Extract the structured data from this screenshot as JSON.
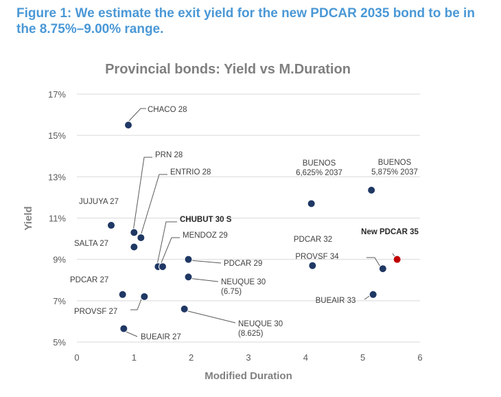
{
  "figure": {
    "caption": "Figure 1: We estimate the exit yield for the new PDCAR 2035 bond to be in the 8.75%–9.00% range."
  },
  "colors": {
    "caption": "#4a98d6",
    "point": "#1f3864",
    "highlight": "#c00000",
    "grid": "#d9d9d9"
  },
  "chart_data": {
    "type": "scatter",
    "title": "Provincial bonds: Yield vs M.Duration",
    "xlabel": "Modified Duration",
    "ylabel": "Yield",
    "xlim": [
      0,
      6
    ],
    "ylim": [
      5,
      17
    ],
    "x_ticks": [
      0,
      1,
      2,
      3,
      4,
      5,
      6
    ],
    "x_tick_labels": [
      "0",
      "1",
      "2",
      "3",
      "4",
      "5",
      "6"
    ],
    "y_ticks": [
      5,
      7,
      9,
      11,
      13,
      15,
      17
    ],
    "y_tick_labels": [
      "5%",
      "7%",
      "9%",
      "11%",
      "13%",
      "15%",
      "17%"
    ],
    "grid": "horizontal",
    "points": [
      {
        "id": "chaco-28",
        "label": [
          "CHACO 28"
        ],
        "x": 0.9,
        "y": 15.5
      },
      {
        "id": "jujuya-27",
        "label": [
          "JUJUYA 27"
        ],
        "x": 0.6,
        "y": 10.65
      },
      {
        "id": "prn-28",
        "label": [
          "PRN 28"
        ],
        "x": 1.0,
        "y": 10.3
      },
      {
        "id": "entrio-28",
        "label": [
          "ENTRIO 28"
        ],
        "x": 1.12,
        "y": 10.05
      },
      {
        "id": "salta-27",
        "label": [
          "SALTA 27"
        ],
        "x": 1.0,
        "y": 9.6
      },
      {
        "id": "chubut-30-s",
        "label": [
          "CHUBUT 30 S"
        ],
        "x": 1.42,
        "y": 8.65,
        "bold": true
      },
      {
        "id": "mendoz-29",
        "label": [
          "MENDOZ 29"
        ],
        "x": 1.5,
        "y": 8.65
      },
      {
        "id": "pdcar-29",
        "label": [
          "PDCAR 29"
        ],
        "x": 1.95,
        "y": 9.0
      },
      {
        "id": "neuque-30-675",
        "label": [
          "NEUQUE 30",
          "(6.75)"
        ],
        "x": 1.95,
        "y": 8.15
      },
      {
        "id": "pdcar-27",
        "label": [
          "PDCAR 27"
        ],
        "x": 0.8,
        "y": 7.3
      },
      {
        "id": "provsf-27",
        "label": [
          "PROVSF 27"
        ],
        "x": 1.18,
        "y": 7.2
      },
      {
        "id": "neuque-30-8625",
        "label": [
          "NEUQUE 30",
          "(8.625)"
        ],
        "x": 1.88,
        "y": 6.6
      },
      {
        "id": "bueair-27",
        "label": [
          "BUEAIR 27"
        ],
        "x": 0.82,
        "y": 5.65
      },
      {
        "id": "buenos-6625-2037",
        "label": [
          "BUENOS",
          "6,625% 2037"
        ],
        "x": 4.1,
        "y": 11.7
      },
      {
        "id": "buenos-5875-2037",
        "label": [
          "BUENOS",
          "5,875% 2037"
        ],
        "x": 5.15,
        "y": 12.35
      },
      {
        "id": "pdcar-32",
        "label": [
          "PDCAR 32"
        ],
        "x": 4.12,
        "y": 8.7
      },
      {
        "id": "provsf-34",
        "label": [
          "PROVSF 34"
        ],
        "x": 5.35,
        "y": 8.55
      },
      {
        "id": "new-pdcar-35",
        "label": [
          "New PDCAR 35"
        ],
        "x": 5.6,
        "y": 9.0,
        "highlight": true,
        "bold": true
      },
      {
        "id": "bueair-33",
        "label": [
          "BUEAIR 33"
        ],
        "x": 5.18,
        "y": 7.3
      }
    ]
  }
}
